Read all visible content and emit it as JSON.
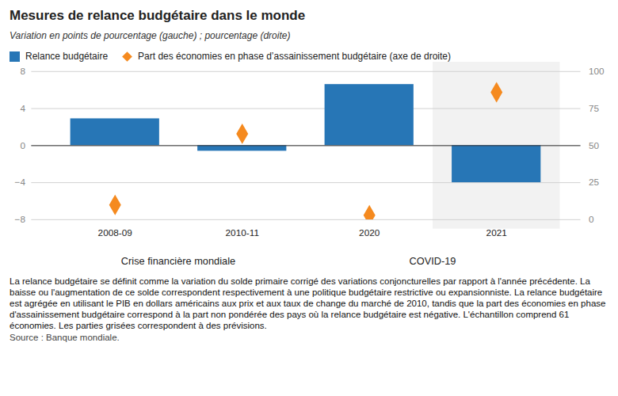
{
  "chart_data": {
    "type": "bar",
    "title": "Mesures de relance budgétaire dans le monde",
    "subtitle": "Variation en points de pourcentage (gauche) ; pourcentage (droite)",
    "categories": [
      "2008-09",
      "2010-11",
      "2020",
      "2021"
    ],
    "groups": [
      {
        "label": "Crise financière mondiale",
        "categories": [
          "2008-09",
          "2010-11"
        ]
      },
      {
        "label": "COVID-19",
        "categories": [
          "2020",
          "2021"
        ]
      }
    ],
    "shaded_categories": [
      "2021"
    ],
    "series": [
      {
        "name": "Relance budgétaire",
        "type": "bar",
        "color": "#2776b6",
        "values": [
          2.9,
          -0.6,
          6.6,
          -4.0
        ]
      },
      {
        "name": "Part des économies en phase d’assainissement budgétaire (axe de droite)",
        "type": "scatter",
        "marker": "diamond",
        "axis": "y2",
        "color": "#f58a1f",
        "values": [
          10,
          58,
          3,
          86
        ]
      }
    ],
    "ylim": [
      -8,
      8
    ],
    "yticks": [
      -8,
      -4,
      0,
      4,
      8
    ],
    "y2lim": [
      0,
      100
    ],
    "y2ticks": [
      0,
      25,
      50,
      75,
      100
    ],
    "grid": true,
    "legend": "top",
    "note": "La relance budgétaire se définit comme la variation du solde primaire corrigé des variations conjoncturelles par rapport à l'année précédente. La baisse ou l'augmentation de ce solde correspondent respectivement à une politique budgétaire restrictive ou expansionniste. La relance budgétaire est agrégée en utilisant le PIB en dollars américains aux prix et aux taux de change du marché de 2010, tandis que la part des économies en phase d'assainissement budgétaire correspond à la part non pondérée des pays où la relance budgétaire est négative. L'échantillon comprend 61 économies. Les parties grisées correspondent à des prévisions.",
    "source": "Source : Banque mondiale."
  }
}
